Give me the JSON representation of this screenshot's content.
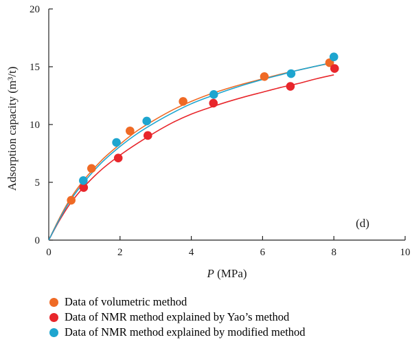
{
  "chart_data": {
    "type": "scatter",
    "panel_label": "(d)",
    "xlabel": {
      "italic": "P",
      "rest": " (MPa)"
    },
    "ylabel": "Adsorption capacity (m³/t)",
    "xlim": [
      0,
      10
    ],
    "ylim": [
      0,
      20
    ],
    "xticks": [
      0,
      2,
      4,
      6,
      8,
      10
    ],
    "yticks": [
      0,
      5,
      10,
      15,
      20
    ],
    "grid": false,
    "legend_position": "bottom",
    "series": [
      {
        "name": "Data of volumetric method",
        "color": "#ef6a25",
        "points": [
          [
            0.63,
            3.45
          ],
          [
            1.2,
            6.2
          ],
          [
            2.28,
            9.45
          ],
          [
            3.77,
            12.0
          ],
          [
            6.05,
            14.15
          ],
          [
            7.88,
            15.35
          ]
        ],
        "fit": [
          [
            0.0,
            0.0
          ],
          [
            0.3,
            1.9
          ],
          [
            0.6,
            3.55
          ],
          [
            1.0,
            5.25
          ],
          [
            1.5,
            6.95
          ],
          [
            2.0,
            8.3
          ],
          [
            2.5,
            9.5
          ],
          [
            3.0,
            10.45
          ],
          [
            3.5,
            11.3
          ],
          [
            4.0,
            12.0
          ],
          [
            4.5,
            12.6
          ],
          [
            5.0,
            13.1
          ],
          [
            5.5,
            13.55
          ],
          [
            6.0,
            13.95
          ],
          [
            6.5,
            14.35
          ],
          [
            7.0,
            14.7
          ],
          [
            7.5,
            15.05
          ],
          [
            8.0,
            15.35
          ]
        ]
      },
      {
        "name": "Data of NMR method explained by Yao’s method",
        "color": "#e8262b",
        "points": [
          [
            0.98,
            4.55
          ],
          [
            1.95,
            7.1
          ],
          [
            2.78,
            9.05
          ],
          [
            4.62,
            11.85
          ],
          [
            6.78,
            13.3
          ],
          [
            8.02,
            14.85
          ]
        ],
        "fit": [
          [
            0.0,
            0.0
          ],
          [
            0.3,
            1.7
          ],
          [
            0.6,
            3.15
          ],
          [
            1.0,
            4.65
          ],
          [
            1.5,
            6.15
          ],
          [
            2.0,
            7.35
          ],
          [
            2.5,
            8.4
          ],
          [
            3.0,
            9.35
          ],
          [
            3.5,
            10.2
          ],
          [
            4.0,
            10.9
          ],
          [
            4.5,
            11.45
          ],
          [
            5.0,
            11.95
          ],
          [
            5.5,
            12.4
          ],
          [
            6.0,
            12.8
          ],
          [
            6.5,
            13.2
          ],
          [
            7.0,
            13.55
          ],
          [
            7.5,
            13.95
          ],
          [
            8.0,
            14.3
          ]
        ]
      },
      {
        "name": "Data of NMR method explained by modified method",
        "color": "#1ea5cf",
        "points": [
          [
            0.97,
            5.15
          ],
          [
            1.9,
            8.45
          ],
          [
            2.75,
            10.3
          ],
          [
            4.63,
            12.6
          ],
          [
            6.8,
            14.4
          ],
          [
            8.0,
            15.85
          ]
        ],
        "fit": [
          [
            0.0,
            0.0
          ],
          [
            0.3,
            1.8
          ],
          [
            0.6,
            3.4
          ],
          [
            1.0,
            5.05
          ],
          [
            1.5,
            6.75
          ],
          [
            2.0,
            8.1
          ],
          [
            2.5,
            9.25
          ],
          [
            3.0,
            10.2
          ],
          [
            3.5,
            11.05
          ],
          [
            4.0,
            11.8
          ],
          [
            4.5,
            12.4
          ],
          [
            5.0,
            12.95
          ],
          [
            5.5,
            13.45
          ],
          [
            6.0,
            13.9
          ],
          [
            6.5,
            14.3
          ],
          [
            7.0,
            14.7
          ],
          [
            7.5,
            15.05
          ],
          [
            8.0,
            15.4
          ]
        ]
      }
    ]
  }
}
